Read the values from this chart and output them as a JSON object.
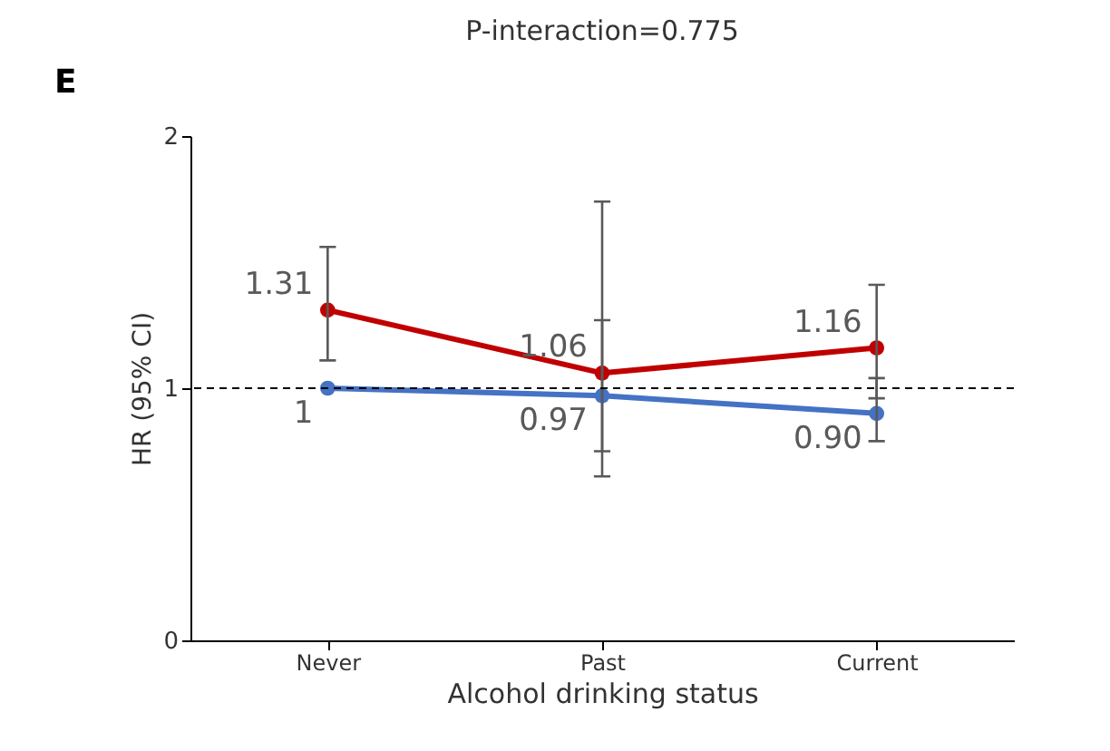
{
  "chart_data": {
    "type": "line",
    "title": "P-interaction=0.775",
    "xlabel": "Alcohol drinking status",
    "ylabel": "HR (95% CI)",
    "categories": [
      "Never",
      "Past",
      "Current"
    ],
    "series": [
      {
        "color": "#c00000",
        "values": [
          1.31,
          1.06,
          1.16
        ],
        "value_labels": [
          "1.31",
          "1.06",
          "1.16"
        ],
        "errors": [
          [
            1.11,
            1.56
          ],
          [
            0.65,
            1.74
          ],
          [
            0.96,
            1.41
          ]
        ]
      },
      {
        "color": "#4472c4",
        "values": [
          1,
          0.97,
          0.9
        ],
        "value_labels": [
          "1",
          "0.97",
          "0.90"
        ],
        "errors": [
          null,
          [
            0.75,
            1.27
          ],
          [
            0.79,
            1.04
          ]
        ]
      }
    ],
    "ylim": [
      0,
      2
    ],
    "yticks": [
      0,
      1,
      2
    ],
    "grid": false,
    "marker": "circle",
    "line_style": "solid",
    "ref_lines": [
      {
        "axis": "y",
        "value": 1,
        "color": "#000000",
        "line_style": "dashed"
      }
    ],
    "annotations": [
      "E"
    ]
  }
}
